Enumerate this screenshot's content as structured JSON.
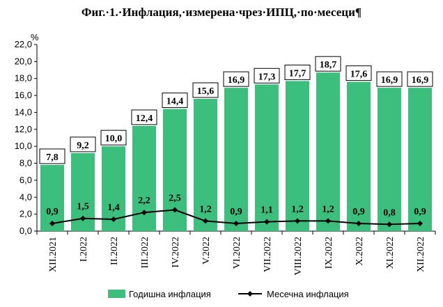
{
  "chart_data": {
    "type": "bar",
    "title": "Фиг.·1.·Инфлация,·измерена·чрез·ИПЦ,·по·месеци¶",
    "unit": "%",
    "categories": [
      "XII.2021",
      "I.2022",
      "II.2022",
      "III.2022",
      "IV.2022",
      "V.2022",
      "VI.2022",
      "VII.2022",
      "VIII.2022",
      "IX.2022",
      "X.2022",
      "XI.2022",
      "XII.2022"
    ],
    "ylim": [
      0,
      22
    ],
    "yticks": [
      "0,0",
      "2,0",
      "4,0",
      "6,0",
      "8,0",
      "10,0",
      "12,0",
      "14,0",
      "16,0",
      "18,0",
      "20,0",
      "22,0"
    ],
    "grid": false,
    "legend_position": "bottom",
    "series": [
      {
        "name": "Годишна инфлация",
        "type": "bar",
        "color": "#3cbf7d",
        "values": [
          7.8,
          9.2,
          10.0,
          12.4,
          14.4,
          15.6,
          16.9,
          17.3,
          17.7,
          18.7,
          17.6,
          16.9,
          16.9
        ],
        "labels": [
          "7,8",
          "9,2",
          "10,0",
          "12,4",
          "14,4",
          "15,6",
          "16,9",
          "17,3",
          "17,7",
          "18,7",
          "17,6",
          "16,9",
          "16,9"
        ]
      },
      {
        "name": "Месечна инфлация",
        "type": "line",
        "color": "#000000",
        "marker": "diamond",
        "values": [
          0.9,
          1.5,
          1.4,
          2.2,
          2.5,
          1.2,
          0.9,
          1.1,
          1.2,
          1.2,
          0.9,
          0.8,
          0.9
        ],
        "labels": [
          "0,9",
          "1,5",
          "1,4",
          "2,2",
          "2,5",
          "1,2",
          "0,9",
          "1,1",
          "1,2",
          "1,2",
          "0,9",
          "0,8",
          "0,9"
        ]
      }
    ]
  }
}
